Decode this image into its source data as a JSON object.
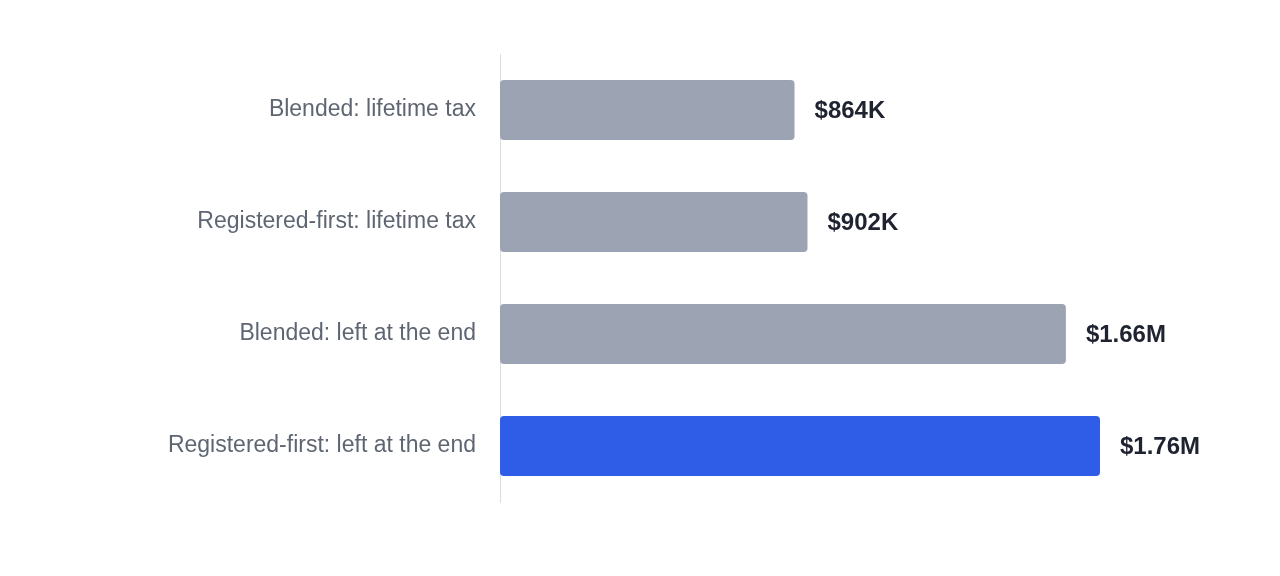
{
  "chart_data": {
    "type": "bar",
    "orientation": "horizontal",
    "categories": [
      "Blended: lifetime tax",
      "Registered-first: lifetime tax",
      "Blended: left at the end",
      "Registered-first: left at the end"
    ],
    "values": [
      864000,
      902000,
      1660000,
      1760000
    ],
    "colors": [
      "#9ca4b4",
      "#9ca4b4",
      "#9ca4b4",
      "#2f5de8"
    ],
    "value_labels": [
      "$864K",
      "$902K",
      "$1.66M",
      "$1.76M"
    ],
    "legend": false,
    "tick_labels": "y"
  }
}
